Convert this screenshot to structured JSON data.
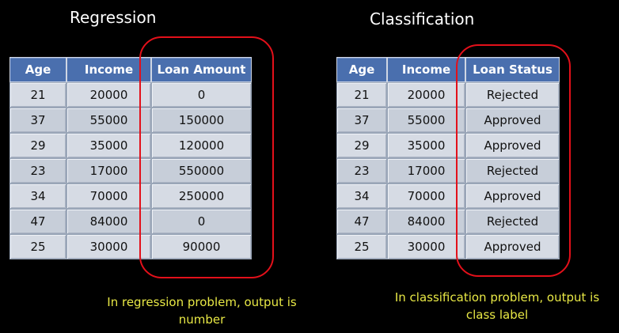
{
  "regression": {
    "title": "Regression",
    "headers": [
      "Age",
      "Income",
      "Loan Amount"
    ],
    "rows": [
      [
        "21",
        "20000",
        "0"
      ],
      [
        "37",
        "55000",
        "150000"
      ],
      [
        "29",
        "35000",
        "120000"
      ],
      [
        "23",
        "17000",
        "550000"
      ],
      [
        "34",
        "70000",
        "250000"
      ],
      [
        "47",
        "84000",
        "0"
      ],
      [
        "25",
        "30000",
        "90000"
      ]
    ],
    "caption": "In regression problem, output is number"
  },
  "classification": {
    "title": "Classification",
    "headers": [
      "Age",
      "Income",
      "Loan Status"
    ],
    "rows": [
      [
        "21",
        "20000",
        "Rejected"
      ],
      [
        "37",
        "55000",
        "Approved"
      ],
      [
        "29",
        "35000",
        "Approved"
      ],
      [
        "23",
        "17000",
        "Rejected"
      ],
      [
        "34",
        "70000",
        "Approved"
      ],
      [
        "47",
        "84000",
        "Rejected"
      ],
      [
        "25",
        "30000",
        "Approved"
      ]
    ],
    "caption": "In classification problem, output is class label"
  },
  "colors": {
    "background": "#000000",
    "header": "#4a6fae",
    "cell": "#d6dbe4",
    "highlight": "#e3101a",
    "caption": "#e8e845"
  }
}
